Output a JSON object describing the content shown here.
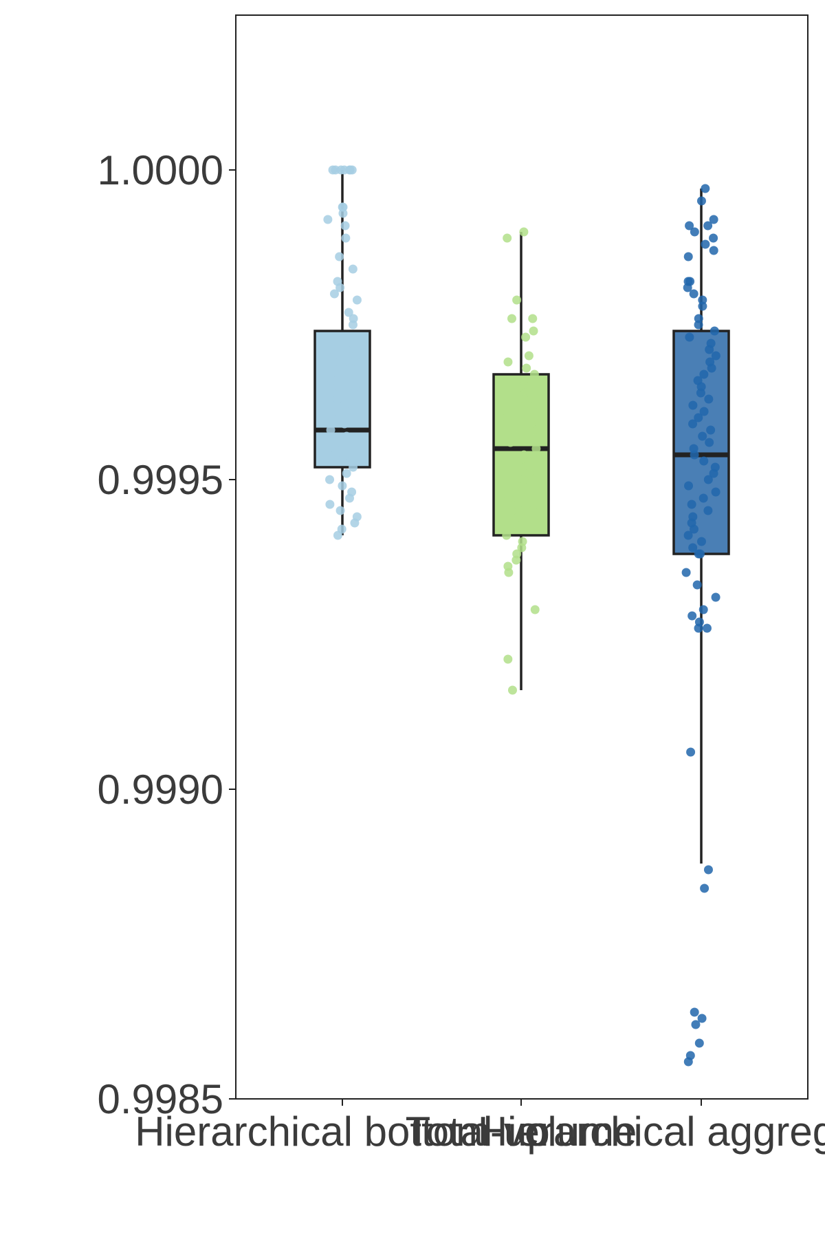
{
  "chart_data": {
    "type": "box",
    "title": "",
    "xlabel": "",
    "ylabel": "",
    "ylim": [
      0.9985,
      1.00025
    ],
    "yticks": [
      {
        "value": 1.0,
        "label": "1.0000"
      },
      {
        "value": 0.9995,
        "label": "0.9995"
      },
      {
        "value": 0.999,
        "label": "0.9990"
      },
      {
        "value": 0.9985,
        "label": "0.9985"
      }
    ],
    "grid": false,
    "legend": "none",
    "categories": [
      "Hierarchical bottom-up",
      "Total volume",
      "Hierarchical aggregation"
    ],
    "boxes": [
      {
        "category": "Hierarchical bottom-up",
        "color": "#a6cee3",
        "point_color": "#a6cee3",
        "whisker_low": 0.99941,
        "q1": 0.99952,
        "median": 0.99958,
        "q3": 0.99974,
        "whisker_high": 1.0,
        "points": [
          1.0,
          1.0,
          1.0,
          1.0,
          1.0,
          1.0,
          1.0,
          0.99994,
          0.99994,
          0.99993,
          0.99992,
          0.99991,
          0.99989,
          0.99986,
          0.99984,
          0.99982,
          0.99981,
          0.9998,
          0.99979,
          0.99977,
          0.99976,
          0.99975,
          0.99973,
          0.99971,
          0.9997,
          0.99969,
          0.99968,
          0.99966,
          0.99965,
          0.99964,
          0.99963,
          0.99962,
          0.99961,
          0.9996,
          0.99959,
          0.99958,
          0.99957,
          0.99956,
          0.99955,
          0.99954,
          0.99953,
          0.99952,
          0.99951,
          0.9995,
          0.99949,
          0.99948,
          0.99947,
          0.99946,
          0.99945,
          0.99944,
          0.99943,
          0.99942,
          0.99941
        ]
      },
      {
        "category": "Total volume",
        "color": "#b2df8a",
        "point_color": "#b2df8a",
        "whisker_low": 0.99916,
        "q1": 0.99941,
        "median": 0.99955,
        "q3": 0.99967,
        "whisker_high": 0.9999,
        "points": [
          0.9999,
          0.99989,
          0.99979,
          0.99976,
          0.99976,
          0.99974,
          0.99973,
          0.9997,
          0.99969,
          0.99968,
          0.99967,
          0.99966,
          0.99965,
          0.99964,
          0.99963,
          0.99962,
          0.99961,
          0.9996,
          0.99959,
          0.99958,
          0.99957,
          0.99956,
          0.99955,
          0.99954,
          0.99953,
          0.99952,
          0.99951,
          0.9995,
          0.99949,
          0.99948,
          0.99947,
          0.99946,
          0.99945,
          0.99944,
          0.99943,
          0.99942,
          0.99941,
          0.9994,
          0.99939,
          0.99938,
          0.99937,
          0.99936,
          0.99935,
          0.99929,
          0.99921,
          0.99916
        ]
      },
      {
        "category": "Hierarchical aggregation",
        "color": "#4a7fb5",
        "point_color": "#2166ac",
        "whisker_low": 0.99888,
        "q1": 0.99938,
        "median": 0.99954,
        "q3": 0.99974,
        "whisker_high": 0.99997,
        "points": [
          0.99997,
          0.99995,
          0.99992,
          0.99991,
          0.99991,
          0.9999,
          0.99989,
          0.99988,
          0.99987,
          0.99986,
          0.99982,
          0.99982,
          0.99981,
          0.9998,
          0.99979,
          0.99978,
          0.99976,
          0.99975,
          0.99974,
          0.99973,
          0.99972,
          0.99971,
          0.9997,
          0.99969,
          0.99968,
          0.99967,
          0.99966,
          0.99965,
          0.99964,
          0.99963,
          0.99962,
          0.99961,
          0.9996,
          0.99959,
          0.99958,
          0.99957,
          0.99956,
          0.99955,
          0.99954,
          0.99953,
          0.99952,
          0.99951,
          0.9995,
          0.99949,
          0.99948,
          0.99947,
          0.99946,
          0.99945,
          0.99944,
          0.99943,
          0.99942,
          0.99941,
          0.9994,
          0.99939,
          0.99938,
          0.99938,
          0.99935,
          0.99933,
          0.99931,
          0.99929,
          0.99928,
          0.99927,
          0.99926,
          0.99926,
          0.99906,
          0.99887,
          0.99884,
          0.99864,
          0.99863,
          0.99862,
          0.99859,
          0.99857,
          0.99856
        ]
      }
    ]
  }
}
